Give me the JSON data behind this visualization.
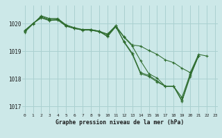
{
  "title": "Graphe pression niveau de la mer (hPa)",
  "bg_color": "#cce8e8",
  "grid_color": "#aad0d0",
  "line_color": "#2d6b2d",
  "ylim": [
    1016.75,
    1020.65
  ],
  "yticks": [
    1017,
    1018,
    1019,
    1020
  ],
  "xlim": [
    -0.3,
    23.3
  ],
  "xticks": [
    0,
    1,
    2,
    3,
    4,
    5,
    6,
    7,
    8,
    9,
    10,
    11,
    12,
    13,
    14,
    15,
    16,
    17,
    18,
    19,
    20,
    21,
    22,
    23
  ],
  "series": [
    [
      1019.75,
      1020.0,
      1020.2,
      1020.1,
      1020.15,
      1019.92,
      1019.82,
      1019.78,
      1019.78,
      1019.72,
      1019.62,
      1019.92,
      1019.52,
      1019.22,
      1019.18,
      1019.02,
      1018.88,
      1018.68,
      1018.58,
      1018.38,
      1018.22,
      1018.88,
      1018.82,
      null
    ],
    [
      1019.72,
      1020.0,
      1020.22,
      1020.12,
      1020.12,
      1019.9,
      1019.82,
      1019.76,
      1019.76,
      1019.7,
      1019.6,
      1019.88,
      1019.5,
      1019.18,
      1018.65,
      1018.18,
      1018.02,
      1017.72,
      1017.72,
      1017.32,
      1018.18,
      1018.82,
      null,
      null
    ],
    [
      1019.68,
      1019.98,
      1020.28,
      1020.18,
      1020.18,
      1019.95,
      1019.85,
      1019.78,
      1019.78,
      1019.72,
      1019.52,
      1019.88,
      1019.35,
      1018.92,
      1018.22,
      1018.12,
      1017.92,
      1017.72,
      1017.72,
      1017.22,
      1018.12,
      1018.82,
      null,
      null
    ],
    [
      1019.72,
      1020.0,
      1020.25,
      1020.15,
      1020.15,
      1019.92,
      1019.82,
      1019.76,
      1019.76,
      1019.7,
      1019.55,
      1019.92,
      1019.32,
      1018.88,
      1018.18,
      1018.08,
      1017.88,
      1017.72,
      1017.72,
      1017.18,
      1018.08,
      1018.82,
      null,
      null
    ]
  ]
}
